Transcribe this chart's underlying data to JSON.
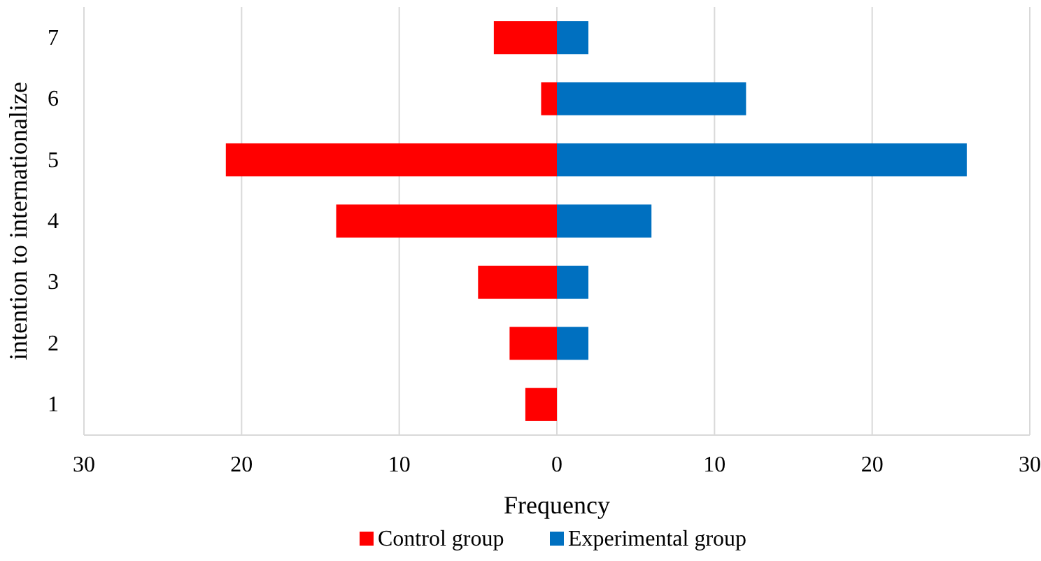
{
  "chart_data": {
    "type": "bar",
    "orientation": "horizontal",
    "stacked": true,
    "xlabel": "Frequency",
    "ylabel": "intention to internationalize",
    "categories": [
      "7",
      "6",
      "5",
      "4",
      "3",
      "2",
      "1"
    ],
    "series": [
      {
        "name": "Control group",
        "color": "#ff0000",
        "values": [
          -4,
          -1,
          -21,
          -14,
          -5,
          -3,
          -2
        ]
      },
      {
        "name": "Experimental group",
        "color": "#0070c0",
        "values": [
          2,
          12,
          26,
          6,
          2,
          2,
          0
        ]
      }
    ],
    "xlim": [
      -30,
      30
    ],
    "xticks": [
      {
        "value": -30,
        "label": "30"
      },
      {
        "value": -20,
        "label": "20"
      },
      {
        "value": -10,
        "label": "10"
      },
      0,
      10,
      20,
      30
    ],
    "grid": "x",
    "legend": "bottom"
  }
}
